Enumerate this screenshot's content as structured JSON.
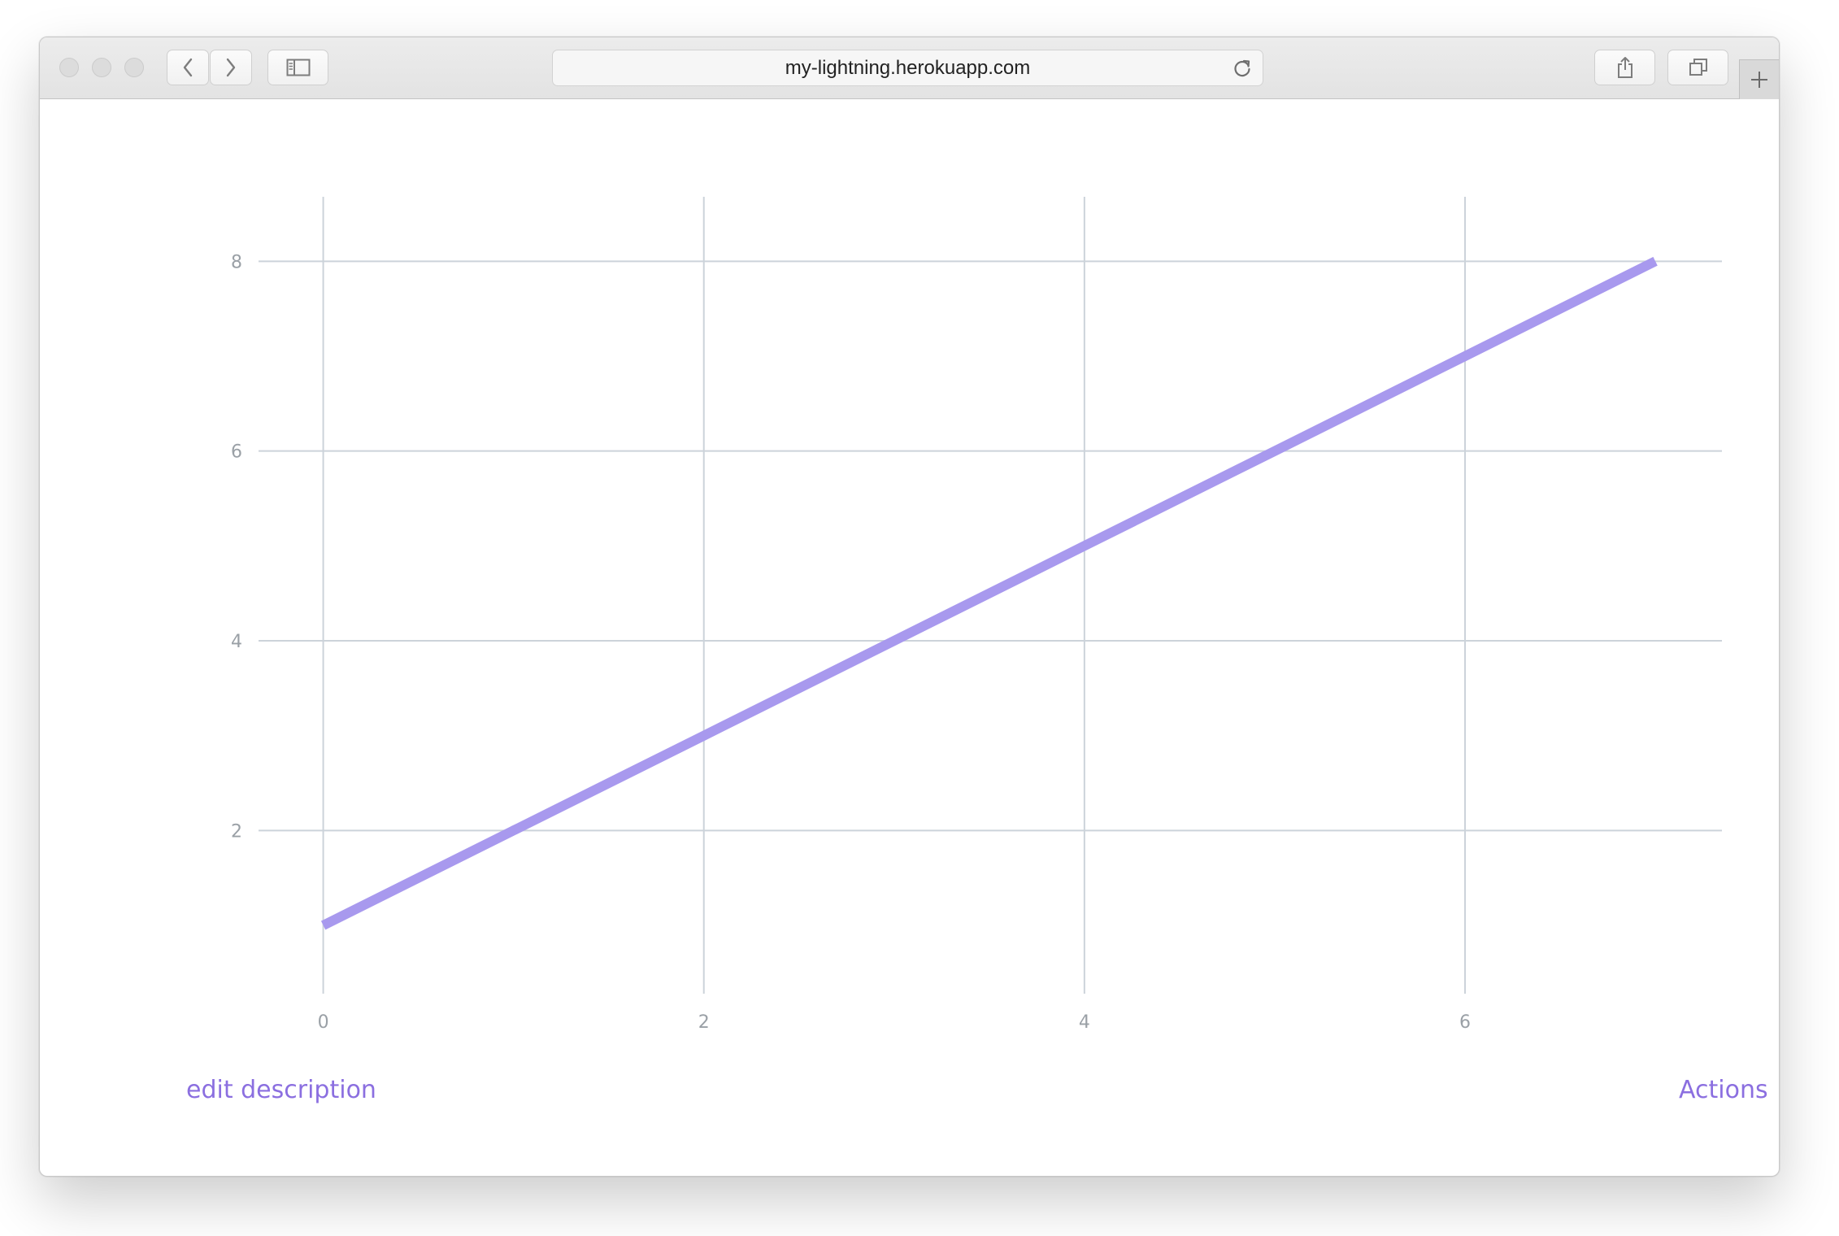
{
  "browser": {
    "url": "my-lightning.herokuapp.com",
    "icons": {
      "close": "traffic-light-close-icon",
      "minimize": "traffic-light-minimize-icon",
      "zoom": "traffic-light-zoom-icon",
      "back": "chevron-left-icon",
      "forward": "chevron-right-icon",
      "sidebar": "sidebar-icon",
      "reload": "reload-icon",
      "share": "share-icon",
      "tabs": "tabs-overview-icon",
      "new_tab": "plus-icon"
    }
  },
  "page": {
    "edit_link": "edit description",
    "actions_link": "Actions",
    "link_color": "#8b6fe0"
  },
  "chart_data": {
    "type": "line",
    "title": "",
    "xlabel": "",
    "ylabel": "",
    "x_ticks": [
      "0",
      "2",
      "4",
      "6"
    ],
    "y_ticks": [
      "2",
      "4",
      "6",
      "8"
    ],
    "xlim": [
      -0.34,
      7.35
    ],
    "ylim": [
      0.28,
      8.68
    ],
    "grid": true,
    "series": [
      {
        "x": [
          0,
          1,
          2,
          3,
          4,
          5,
          6,
          7
        ],
        "y": [
          1,
          2,
          3,
          4,
          5,
          6,
          7,
          8
        ],
        "color": "#a899ee"
      }
    ],
    "colors": {
      "grid": "#ccd3da",
      "tick_label": "#9aa0a6"
    }
  }
}
